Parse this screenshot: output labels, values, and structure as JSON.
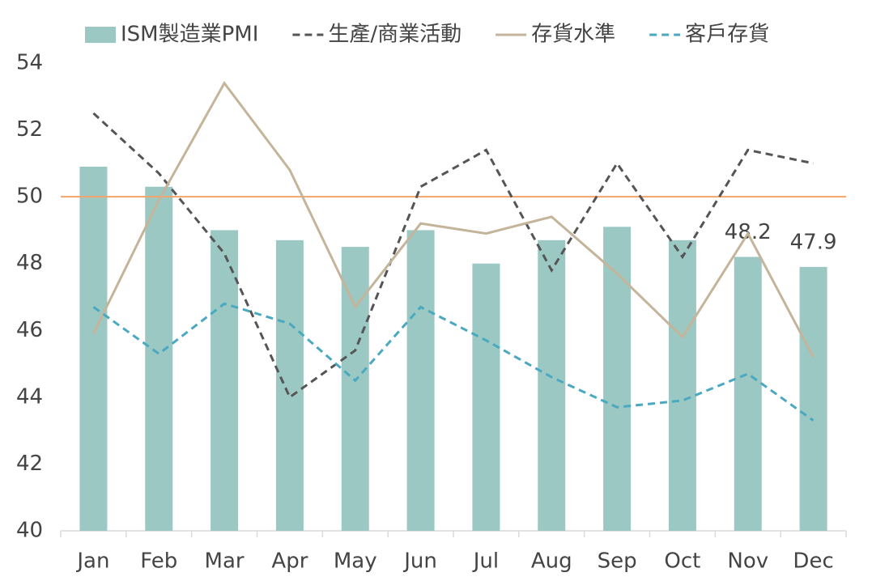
{
  "chart_data": {
    "type": "bar_line",
    "categories": [
      "Jan",
      "Feb",
      "Mar",
      "Apr",
      "May",
      "Jun",
      "Jul",
      "Aug",
      "Sep",
      "Oct",
      "Nov",
      "Dec"
    ],
    "series": [
      {
        "name": "ISM製造業PMI",
        "type": "bar",
        "color": "#9cc8c3",
        "values": [
          50.9,
          50.3,
          49.0,
          48.7,
          48.5,
          49.0,
          48.0,
          48.7,
          49.1,
          48.7,
          48.2,
          47.9
        ],
        "value_labels": [
          null,
          null,
          null,
          null,
          null,
          null,
          null,
          null,
          null,
          null,
          "48.2",
          "47.9"
        ]
      },
      {
        "name": "生產/商業活動",
        "type": "line",
        "dash": true,
        "color": "#555555",
        "values": [
          52.5,
          50.7,
          48.3,
          44.0,
          45.4,
          50.3,
          51.4,
          47.8,
          51.0,
          48.2,
          51.4,
          51.0
        ]
      },
      {
        "name": "存貨水準",
        "type": "line",
        "dash": false,
        "color": "#c4b49a",
        "values": [
          45.9,
          49.9,
          53.4,
          50.8,
          46.7,
          49.2,
          48.9,
          49.4,
          47.7,
          45.8,
          48.9,
          45.2
        ]
      },
      {
        "name": "客戶存貨",
        "type": "line",
        "dash": true,
        "color": "#4aa8c0",
        "values": [
          46.7,
          45.3,
          46.8,
          46.2,
          44.5,
          46.7,
          45.7,
          44.6,
          43.7,
          43.9,
          44.7,
          43.3
        ]
      }
    ],
    "reference_line": {
      "value": 50,
      "color": "#f4a46a"
    },
    "ylim": [
      40,
      54
    ],
    "yticks": [
      40,
      42,
      44,
      46,
      48,
      50,
      52,
      54
    ],
    "legend": "top"
  }
}
